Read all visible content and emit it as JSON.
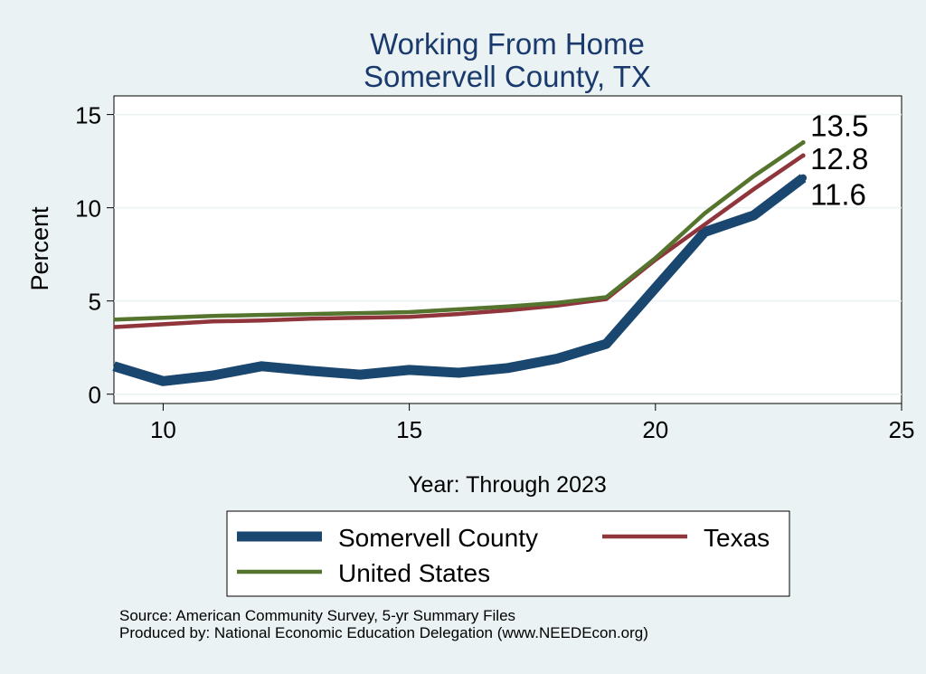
{
  "chart_data": {
    "type": "line",
    "title": "Working From Home",
    "subtitle": "Somervell County, TX",
    "xlabel": "Year: Through 2023",
    "ylabel": "Percent",
    "xlim": [
      9,
      25
    ],
    "ylim": [
      -0.5,
      16
    ],
    "x_ticks": [
      10,
      15,
      20,
      25
    ],
    "y_ticks": [
      0,
      5,
      10,
      15
    ],
    "grid": true,
    "legend_position": "bottom",
    "x": [
      9,
      10,
      11,
      12,
      13,
      14,
      15,
      16,
      17,
      18,
      19,
      20,
      21,
      22,
      23
    ],
    "series": [
      {
        "name": "Somervell County",
        "color": "#1a476f",
        "values": [
          1.5,
          0.7,
          1.0,
          1.5,
          1.25,
          1.05,
          1.3,
          1.15,
          1.4,
          1.9,
          2.7,
          5.7,
          8.7,
          9.6,
          11.6
        ],
        "end_label": "11.6"
      },
      {
        "name": "Texas",
        "color": "#90353b",
        "values": [
          3.6,
          3.75,
          3.9,
          3.95,
          4.05,
          4.1,
          4.15,
          4.3,
          4.5,
          4.75,
          5.1,
          7.2,
          9.1,
          11.0,
          12.8
        ],
        "end_label": "12.8"
      },
      {
        "name": "United States",
        "color": "#55752f",
        "values": [
          4.0,
          4.1,
          4.2,
          4.25,
          4.3,
          4.35,
          4.4,
          4.55,
          4.7,
          4.9,
          5.2,
          7.3,
          9.7,
          11.7,
          13.5
        ],
        "end_label": "13.5"
      }
    ]
  },
  "source": {
    "line1": "Source: American Community Survey, 5-yr Summary Files",
    "line2": "Produced by: National Economic Education Delegation (www.NEEDEcon.org)"
  }
}
